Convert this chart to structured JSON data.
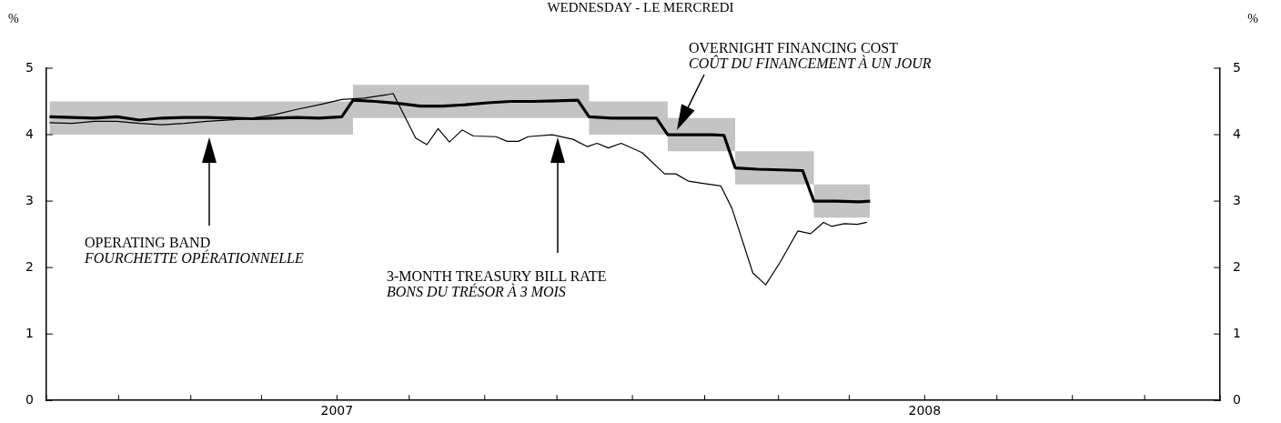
{
  "chart_data": {
    "type": "line",
    "title": "WEDNESDAY - LE MERCREDI",
    "ylabel": "%",
    "y2label": "%",
    "xlim": [
      "2007-01-01",
      "2009-01-01"
    ],
    "xticks": [
      {
        "value": "2007-01-01",
        "label": null
      },
      {
        "value": "2007-02-15",
        "label": null
      },
      {
        "value": "2007-04-01",
        "label": null
      },
      {
        "value": "2007-05-15",
        "label": null
      },
      {
        "value": "2007-07-01",
        "label": "2007"
      },
      {
        "value": "2007-08-15",
        "label": null
      },
      {
        "value": "2007-10-01",
        "label": null
      },
      {
        "value": "2007-11-15",
        "label": null
      },
      {
        "value": "2008-01-01",
        "label": null
      },
      {
        "value": "2008-02-15",
        "label": null
      },
      {
        "value": "2008-04-01",
        "label": null
      },
      {
        "value": "2008-05-15",
        "label": null
      },
      {
        "value": "2008-07-01",
        "label": "2008"
      },
      {
        "value": "2008-08-15",
        "label": null
      },
      {
        "value": "2008-10-01",
        "label": null
      },
      {
        "value": "2008-11-15",
        "label": null
      },
      {
        "value": "2009-01-01",
        "label": null
      }
    ],
    "ylim": [
      0,
      5
    ],
    "yticks": [
      0,
      1,
      2,
      3,
      4,
      5
    ],
    "y2lim": [
      0,
      5
    ],
    "y2ticks": [
      0,
      1,
      2,
      3,
      4,
      5
    ],
    "grid": false,
    "legend": false,
    "marker": "none",
    "line_style": "solid",
    "series": [
      {
        "color": "#000000",
        "x": [
          "2007-01-03",
          "2007-01-17",
          "2007-01-31",
          "2007-02-14",
          "2007-02-28",
          "2007-03-14",
          "2007-03-28",
          "2007-04-11",
          "2007-04-25",
          "2007-05-09",
          "2007-05-23",
          "2007-06-06",
          "2007-06-20",
          "2007-07-04",
          "2007-07-11",
          "2007-07-25",
          "2007-08-08",
          "2007-08-22",
          "2007-09-05",
          "2007-09-19",
          "2007-10-03",
          "2007-10-17",
          "2007-10-31",
          "2007-11-14",
          "2007-11-28",
          "2007-12-05",
          "2007-12-19",
          "2008-01-02",
          "2008-01-16",
          "2008-01-23",
          "2008-02-06",
          "2008-02-20",
          "2008-02-27",
          "2008-03-05",
          "2008-03-19",
          "2008-04-02",
          "2008-04-16",
          "2008-04-23",
          "2008-05-07",
          "2008-05-21",
          "2008-05-28"
        ],
        "values": [
          4.27,
          4.26,
          4.25,
          4.27,
          4.22,
          4.25,
          4.26,
          4.26,
          4.25,
          4.24,
          4.25,
          4.26,
          4.25,
          4.27,
          4.52,
          4.5,
          4.47,
          4.43,
          4.43,
          4.45,
          4.48,
          4.5,
          4.5,
          4.51,
          4.52,
          4.27,
          4.25,
          4.25,
          4.25,
          4.0,
          4.0,
          4.0,
          3.99,
          3.5,
          3.48,
          3.47,
          3.46,
          3.0,
          3.0,
          2.99,
          3.0
        ],
        "lower": [
          4.0,
          4.0,
          4.0,
          4.0,
          4.0,
          4.0,
          4.0,
          4.0,
          4.0,
          4.0,
          4.0,
          4.0,
          4.0,
          4.0,
          4.25,
          4.25,
          4.25,
          4.25,
          4.25,
          4.25,
          4.25,
          4.25,
          4.25,
          4.25,
          4.25,
          4.0,
          4.0,
          4.0,
          4.0,
          3.75,
          3.75,
          3.75,
          3.75,
          3.25,
          3.25,
          3.25,
          3.25,
          2.75,
          2.75,
          2.75,
          2.75
        ],
        "upper": [
          4.5,
          4.5,
          4.5,
          4.5,
          4.5,
          4.5,
          4.5,
          4.5,
          4.5,
          4.5,
          4.5,
          4.5,
          4.5,
          4.5,
          4.75,
          4.75,
          4.75,
          4.75,
          4.75,
          4.75,
          4.75,
          4.75,
          4.75,
          4.75,
          4.75,
          4.5,
          4.5,
          4.5,
          4.5,
          4.25,
          4.25,
          4.25,
          4.25,
          3.75,
          3.75,
          3.75,
          3.75,
          3.25,
          3.25,
          3.25,
          3.25
        ]
      },
      {
        "color": "#000000",
        "x": [
          "2007-01-03",
          "2007-01-17",
          "2007-01-31",
          "2007-02-14",
          "2007-02-28",
          "2007-03-14",
          "2007-03-28",
          "2007-04-11",
          "2007-04-25",
          "2007-05-09",
          "2007-05-23",
          "2007-06-06",
          "2007-06-20",
          "2007-07-04",
          "2007-07-18",
          "2007-08-01",
          "2007-08-05",
          "2007-08-19",
          "2007-08-26",
          "2007-09-02",
          "2007-09-09",
          "2007-09-17",
          "2007-09-24",
          "2007-10-08",
          "2007-10-15",
          "2007-10-22",
          "2007-10-28",
          "2007-11-12",
          "2007-11-25",
          "2007-12-04",
          "2007-12-10",
          "2007-12-17",
          "2007-12-25",
          "2008-01-07",
          "2008-01-21",
          "2008-01-28",
          "2008-02-05",
          "2008-02-13",
          "2008-02-25",
          "2008-03-03",
          "2008-03-16",
          "2008-03-24",
          "2008-04-02",
          "2008-04-13",
          "2008-04-21",
          "2008-04-29",
          "2008-05-04",
          "2008-05-12",
          "2008-05-20",
          "2008-05-26"
        ],
        "values": [
          4.18,
          4.17,
          4.2,
          4.2,
          4.17,
          4.15,
          4.17,
          4.2,
          4.22,
          4.25,
          4.3,
          4.38,
          4.45,
          4.53,
          4.55,
          4.6,
          4.62,
          3.95,
          3.85,
          4.09,
          3.89,
          4.07,
          3.98,
          3.97,
          3.9,
          3.9,
          3.97,
          4.0,
          3.93,
          3.82,
          3.87,
          3.8,
          3.87,
          3.73,
          3.41,
          3.41,
          3.3,
          3.27,
          3.23,
          2.89,
          1.92,
          1.74,
          2.08,
          2.55,
          2.51,
          2.68,
          2.62,
          2.66,
          2.65,
          2.68
        ]
      }
    ],
    "annotations": [
      "OPERATING BAND\nFOURCHETTE OPÉRATIONNELLE",
      "3-MONTH TREASURY BILL RATE\nBONS DU TRÉSOR À 3 MOIS",
      "OVERNIGHT FINANCING COST\nCOÛT DU FINANCEMENT À UN JOUR"
    ]
  }
}
